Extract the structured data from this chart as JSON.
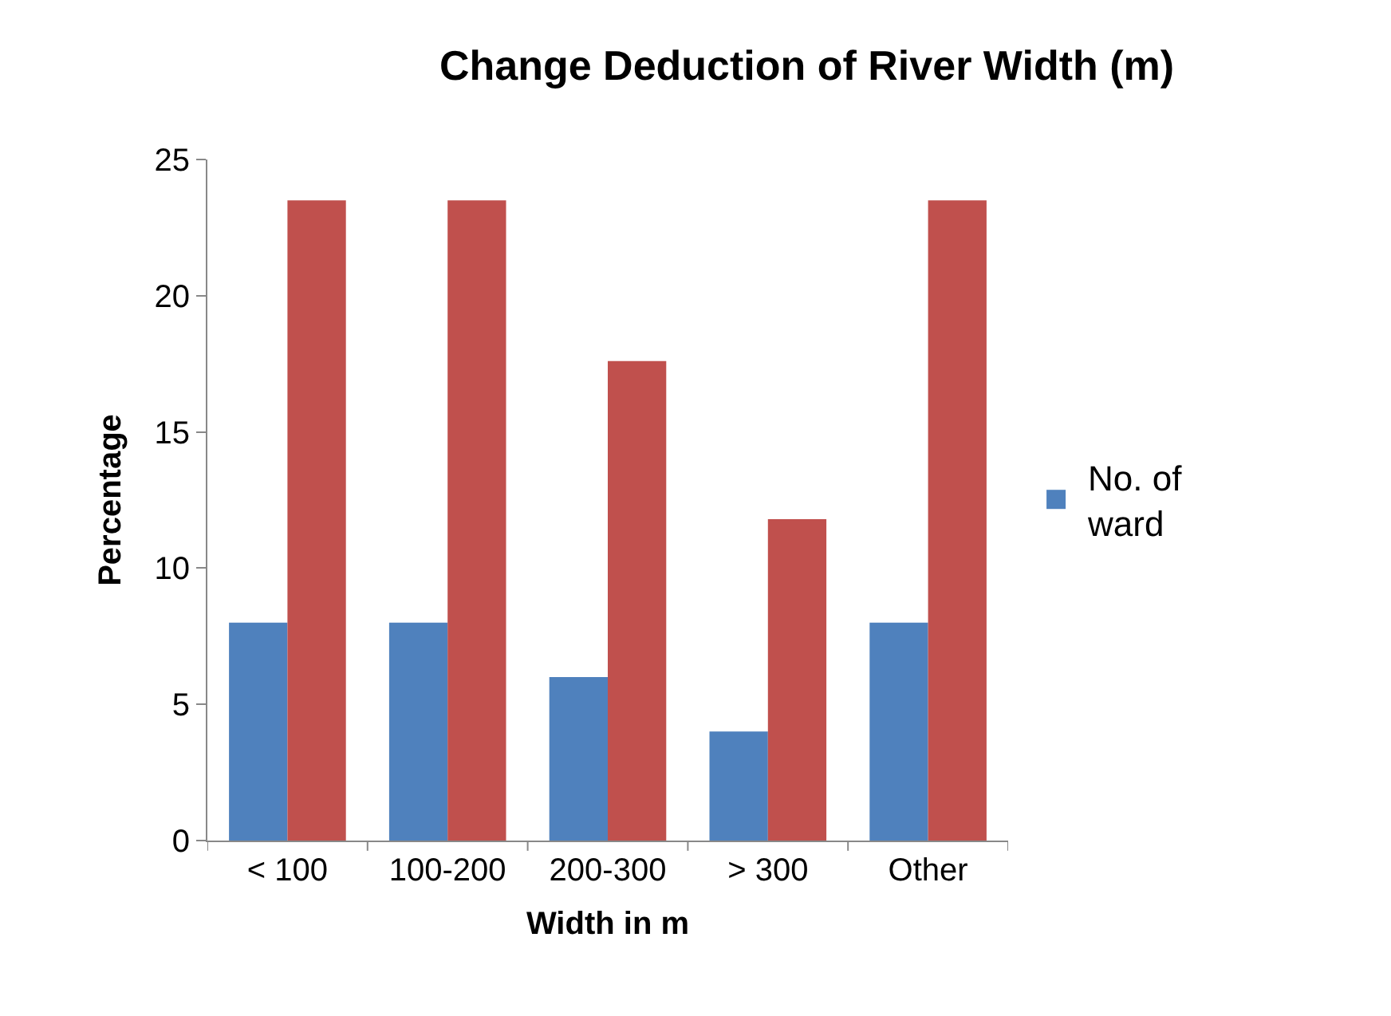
{
  "chart_data": {
    "type": "bar",
    "title": "Change Deduction of River Width (m)",
    "xlabel": "Width in m",
    "ylabel": "Percentage",
    "categories": [
      "< 100",
      "100-200",
      "200-300",
      "> 300",
      "Other"
    ],
    "series": [
      {
        "name": "No. of ward",
        "color": "#4f81bd",
        "values": [
          8,
          8,
          6,
          4,
          8
        ]
      },
      {
        "color": "#c0504d",
        "values": [
          23.5,
          23.5,
          17.6,
          11.8,
          23.5
        ]
      }
    ],
    "ylim": [
      0,
      25
    ],
    "yticks": [
      0,
      5,
      10,
      15,
      20,
      25
    ],
    "grid": false,
    "legend": "right"
  }
}
